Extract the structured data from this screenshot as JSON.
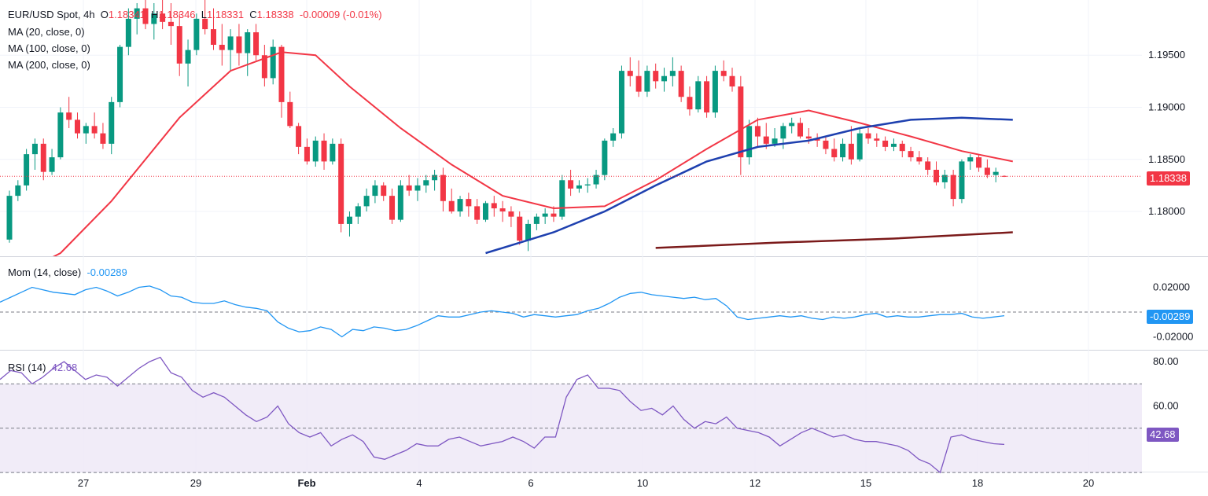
{
  "header": {
    "symbol": "EUR/USD Spot, 4h",
    "open_label": "O",
    "open_value": "1.18341",
    "high_label": "H",
    "high_value": "1.18346",
    "low_label": "L",
    "low_value": "1.18331",
    "close_label": "C",
    "close_value": "1.18338",
    "change": "-0.00009 (-0.01%)"
  },
  "indicators": {
    "ma20": "MA (20, close, 0)",
    "ma100": "MA (100, close, 0)",
    "ma200": "MA (200, close, 0)",
    "mom_label": "Mom (14, close)",
    "mom_value": "-0.00289",
    "rsi_label": "RSI (14)",
    "rsi_value": "42.68"
  },
  "tags": {
    "price": "1.18338",
    "mom": "-0.00289",
    "rsi": "42.68"
  },
  "colors": {
    "up": "#089981",
    "down": "#f23645",
    "ma20": "#f23645",
    "ma100": "#1e40af",
    "ma200": "#7b1a1a",
    "mom": "#2196f3",
    "rsi": "#7e57c2",
    "rsi_band": "#ede7f6"
  },
  "chart_data": [
    {
      "type": "candlestick",
      "title": "EUR/USD Spot, 4h",
      "x_ticks": [
        "27",
        "29",
        "Feb",
        "4",
        "6",
        "10",
        "12",
        "15",
        "18",
        "20"
      ],
      "y_ticks": [
        "1.19500",
        "1.19000",
        "1.18500",
        "1.18000"
      ],
      "ylim": [
        1.1757,
        1.2003
      ],
      "last_price": 1.18338,
      "candles": [
        [
          1.1773,
          1.182,
          1.177,
          1.1815
        ],
        [
          1.1815,
          1.183,
          1.181,
          1.1825
        ],
        [
          1.1825,
          1.186,
          1.182,
          1.1855
        ],
        [
          1.1855,
          1.187,
          1.184,
          1.1865
        ],
        [
          1.1865,
          1.187,
          1.183,
          1.1838
        ],
        [
          1.1838,
          1.186,
          1.1835,
          1.1852
        ],
        [
          1.1852,
          1.19,
          1.185,
          1.1895
        ],
        [
          1.1895,
          1.191,
          1.188,
          1.1888
        ],
        [
          1.1888,
          1.1895,
          1.187,
          1.1875
        ],
        [
          1.1875,
          1.1885,
          1.1865,
          1.1882
        ],
        [
          1.1882,
          1.1895,
          1.187,
          1.1875
        ],
        [
          1.1875,
          1.1885,
          1.186,
          1.1865
        ],
        [
          1.1865,
          1.191,
          1.1855,
          1.1905
        ],
        [
          1.1905,
          1.196,
          1.19,
          1.1958
        ],
        [
          1.1958,
          1.1995,
          1.195,
          1.1985
        ],
        [
          1.1985,
          1.2,
          1.197,
          1.1995
        ],
        [
          1.1995,
          1.2005,
          1.1975,
          1.198
        ],
        [
          1.198,
          1.2,
          1.1965,
          1.199
        ],
        [
          1.199,
          1.2003,
          1.1975,
          1.1982
        ],
        [
          1.1982,
          1.2,
          1.196,
          1.1978
        ],
        [
          1.1978,
          1.199,
          1.193,
          1.1942
        ],
        [
          1.1942,
          1.1965,
          1.192,
          1.1955
        ],
        [
          1.1955,
          1.199,
          1.195,
          1.1985
        ],
        [
          1.1985,
          1.2003,
          1.197,
          1.1975
        ],
        [
          1.1975,
          1.1995,
          1.1955,
          1.196
        ],
        [
          1.196,
          1.198,
          1.194,
          1.1955
        ],
        [
          1.1955,
          1.1975,
          1.1935,
          1.1968
        ],
        [
          1.1968,
          1.198,
          1.194,
          1.1952
        ],
        [
          1.1952,
          1.1975,
          1.193,
          1.1972
        ],
        [
          1.1972,
          1.198,
          1.1945,
          1.195
        ],
        [
          1.195,
          1.196,
          1.192,
          1.1928
        ],
        [
          1.1928,
          1.1965,
          1.1922,
          1.1958
        ],
        [
          1.1958,
          1.196,
          1.189,
          1.1905
        ],
        [
          1.1905,
          1.1915,
          1.188,
          1.1882
        ],
        [
          1.1882,
          1.1885,
          1.1855,
          1.1862
        ],
        [
          1.1862,
          1.187,
          1.1845,
          1.1848
        ],
        [
          1.1848,
          1.1872,
          1.1843,
          1.1868
        ],
        [
          1.1868,
          1.1875,
          1.184,
          1.1848
        ],
        [
          1.1848,
          1.187,
          1.1845,
          1.1865
        ],
        [
          1.1865,
          1.187,
          1.178,
          1.1788
        ],
        [
          1.1788,
          1.18,
          1.1776,
          1.1795
        ],
        [
          1.1795,
          1.1808,
          1.1788,
          1.1805
        ],
        [
          1.1805,
          1.1822,
          1.18,
          1.1815
        ],
        [
          1.1815,
          1.183,
          1.1808,
          1.1825
        ],
        [
          1.1825,
          1.1828,
          1.181,
          1.1815
        ],
        [
          1.1815,
          1.1822,
          1.1788,
          1.1792
        ],
        [
          1.1792,
          1.183,
          1.179,
          1.1825
        ],
        [
          1.1825,
          1.1835,
          1.1815,
          1.182
        ],
        [
          1.182,
          1.1832,
          1.181,
          1.1825
        ],
        [
          1.1825,
          1.1835,
          1.1818,
          1.183
        ],
        [
          1.183,
          1.184,
          1.182,
          1.1835
        ],
        [
          1.1835,
          1.1842,
          1.18,
          1.181
        ],
        [
          1.181,
          1.1822,
          1.1798,
          1.18
        ],
        [
          1.18,
          1.1815,
          1.1795,
          1.1812
        ],
        [
          1.1812,
          1.1818,
          1.1795,
          1.1805
        ],
        [
          1.1805,
          1.1812,
          1.1788,
          1.1792
        ],
        [
          1.1792,
          1.181,
          1.179,
          1.1808
        ],
        [
          1.1808,
          1.1815,
          1.1795,
          1.1803
        ],
        [
          1.1803,
          1.181,
          1.179,
          1.18
        ],
        [
          1.18,
          1.1805,
          1.1785,
          1.1795
        ],
        [
          1.1795,
          1.18,
          1.1768,
          1.1772
        ],
        [
          1.1772,
          1.1792,
          1.1762,
          1.1788
        ],
        [
          1.1788,
          1.1798,
          1.1782,
          1.1795
        ],
        [
          1.1795,
          1.1803,
          1.1788,
          1.1798
        ],
        [
          1.1798,
          1.1805,
          1.179,
          1.1795
        ],
        [
          1.1795,
          1.1835,
          1.1792,
          1.183
        ],
        [
          1.183,
          1.184,
          1.1815,
          1.1822
        ],
        [
          1.1822,
          1.183,
          1.1818,
          1.1825
        ],
        [
          1.1825,
          1.1832,
          1.1818,
          1.1826
        ],
        [
          1.1826,
          1.184,
          1.1822,
          1.1835
        ],
        [
          1.1835,
          1.187,
          1.183,
          1.1868
        ],
        [
          1.1868,
          1.188,
          1.1862,
          1.1875
        ],
        [
          1.1875,
          1.194,
          1.187,
          1.1935
        ],
        [
          1.1935,
          1.1948,
          1.192,
          1.193
        ],
        [
          1.193,
          1.1945,
          1.191,
          1.1915
        ],
        [
          1.1915,
          1.194,
          1.191,
          1.1935
        ],
        [
          1.1935,
          1.1942,
          1.1918,
          1.1925
        ],
        [
          1.1925,
          1.1938,
          1.1915,
          1.193
        ],
        [
          1.193,
          1.1948,
          1.192,
          1.1935
        ],
        [
          1.1935,
          1.194,
          1.1905,
          1.191
        ],
        [
          1.191,
          1.192,
          1.1892,
          1.1898
        ],
        [
          1.1898,
          1.193,
          1.1895,
          1.1925
        ],
        [
          1.1925,
          1.193,
          1.189,
          1.1895
        ],
        [
          1.1895,
          1.194,
          1.189,
          1.1935
        ],
        [
          1.1935,
          1.1945,
          1.1925,
          1.193
        ],
        [
          1.193,
          1.1938,
          1.1915,
          1.192
        ],
        [
          1.192,
          1.193,
          1.1835,
          1.1852
        ],
        [
          1.1852,
          1.1888,
          1.1845,
          1.1882
        ],
        [
          1.1882,
          1.189,
          1.1862,
          1.1872
        ],
        [
          1.1872,
          1.1885,
          1.186,
          1.1865
        ],
        [
          1.1865,
          1.188,
          1.1862,
          1.187
        ],
        [
          1.187,
          1.1885,
          1.186,
          1.1882
        ],
        [
          1.1882,
          1.189,
          1.1875,
          1.1885
        ],
        [
          1.1885,
          1.189,
          1.187,
          1.1872
        ],
        [
          1.1872,
          1.188,
          1.1865,
          1.187
        ],
        [
          1.187,
          1.1875,
          1.1862,
          1.1868
        ],
        [
          1.1868,
          1.1872,
          1.1855,
          1.186
        ],
        [
          1.186,
          1.187,
          1.1848,
          1.1852
        ],
        [
          1.1852,
          1.187,
          1.1848,
          1.1865
        ],
        [
          1.1865,
          1.1882,
          1.1845,
          1.185
        ],
        [
          1.185,
          1.188,
          1.1848,
          1.1875
        ],
        [
          1.1875,
          1.188,
          1.1865,
          1.187
        ],
        [
          1.187,
          1.1875,
          1.1862,
          1.1868
        ],
        [
          1.1868,
          1.1872,
          1.1858,
          1.1862
        ],
        [
          1.1862,
          1.187,
          1.1858,
          1.1865
        ],
        [
          1.1865,
          1.1868,
          1.1852,
          1.1858
        ],
        [
          1.1858,
          1.1862,
          1.1848,
          1.1852
        ],
        [
          1.1852,
          1.1858,
          1.1845,
          1.1848
        ],
        [
          1.1848,
          1.1852,
          1.1835,
          1.184
        ],
        [
          1.184,
          1.1848,
          1.1825,
          1.1828
        ],
        [
          1.1828,
          1.184,
          1.1822,
          1.1835
        ],
        [
          1.1835,
          1.184,
          1.1805,
          1.1812
        ],
        [
          1.1812,
          1.185,
          1.1808,
          1.1848
        ],
        [
          1.1848,
          1.1855,
          1.184,
          1.1852
        ],
        [
          1.1852,
          1.1855,
          1.1838,
          1.1842
        ],
        [
          1.1842,
          1.185,
          1.1832,
          1.1835
        ],
        [
          1.1835,
          1.1842,
          1.1828,
          1.1838
        ],
        [
          1.18341,
          1.18346,
          1.18331,
          1.18338
        ]
      ],
      "ma20": [
        [
          0,
          1.1735
        ],
        [
          6,
          1.176
        ],
        [
          12,
          1.181
        ],
        [
          20,
          1.189
        ],
        [
          26,
          1.1935
        ],
        [
          32,
          1.1953
        ],
        [
          36,
          1.195
        ],
        [
          40,
          1.192
        ],
        [
          46,
          1.188
        ],
        [
          52,
          1.1845
        ],
        [
          58,
          1.1815
        ],
        [
          64,
          1.1803
        ],
        [
          70,
          1.1805
        ],
        [
          76,
          1.183
        ],
        [
          82,
          1.186
        ],
        [
          88,
          1.1888
        ],
        [
          94,
          1.1897
        ],
        [
          100,
          1.1885
        ],
        [
          106,
          1.1872
        ],
        [
          112,
          1.1858
        ],
        [
          118,
          1.1848
        ]
      ],
      "ma100": [
        [
          56,
          1.176
        ],
        [
          64,
          1.178
        ],
        [
          70,
          1.18
        ],
        [
          76,
          1.1825
        ],
        [
          82,
          1.1848
        ],
        [
          88,
          1.1862
        ],
        [
          94,
          1.1868
        ],
        [
          100,
          1.188
        ],
        [
          106,
          1.1888
        ],
        [
          112,
          1.189
        ],
        [
          118,
          1.1888
        ]
      ],
      "ma200": [
        [
          76,
          1.1765
        ],
        [
          90,
          1.177
        ],
        [
          104,
          1.1774
        ],
        [
          118,
          1.178
        ]
      ],
      "series": []
    },
    {
      "type": "line",
      "title": "Mom (14, close)",
      "y_ticks": [
        "0.02000",
        "-0.02000"
      ],
      "ylim": [
        -0.026,
        0.026
      ],
      "zero_line": 0,
      "last_value": -0.00289,
      "values": [
        0.008,
        0.012,
        0.016,
        0.02,
        0.018,
        0.016,
        0.015,
        0.014,
        0.018,
        0.02,
        0.017,
        0.013,
        0.016,
        0.02,
        0.021,
        0.018,
        0.013,
        0.012,
        0.008,
        0.007,
        0.007,
        0.009,
        0.006,
        0.004,
        0.003,
        0.001,
        -0.008,
        -0.013,
        -0.016,
        -0.015,
        -0.012,
        -0.014,
        -0.02,
        -0.014,
        -0.015,
        -0.012,
        -0.013,
        -0.015,
        -0.014,
        -0.011,
        -0.007,
        -0.003,
        -0.004,
        -0.004,
        -0.002,
        0.0,
        0.001,
        0.0,
        -0.001,
        -0.004,
        -0.002,
        -0.003,
        -0.004,
        -0.003,
        -0.002,
        0.001,
        0.003,
        0.007,
        0.012,
        0.015,
        0.016,
        0.014,
        0.013,
        0.012,
        0.011,
        0.012,
        0.01,
        0.011,
        0.005,
        -0.004,
        -0.006,
        -0.005,
        -0.004,
        -0.003,
        -0.004,
        -0.003,
        -0.005,
        -0.006,
        -0.004,
        -0.005,
        -0.004,
        -0.002,
        -0.001,
        -0.004,
        -0.003,
        -0.004,
        -0.004,
        -0.003,
        -0.002,
        -0.002,
        -0.001,
        -0.004,
        -0.005,
        -0.004,
        -0.00289
      ]
    },
    {
      "type": "line",
      "title": "RSI (14)",
      "y_ticks": [
        "80.00",
        "60.00"
      ],
      "ylim": [
        29,
        85
      ],
      "band": [
        30,
        70
      ],
      "mid_line": 50,
      "last_value": 42.68,
      "values": [
        72,
        76,
        75,
        70,
        73,
        77,
        80,
        76,
        72,
        74,
        73,
        69,
        73,
        77,
        80,
        82,
        75,
        73,
        67,
        64,
        66,
        64,
        60,
        56,
        53,
        55,
        60,
        52,
        48,
        46,
        48,
        42,
        45,
        47,
        44,
        37,
        36,
        38,
        40,
        43,
        42,
        42,
        45,
        46,
        44,
        42,
        43,
        44,
        46,
        44,
        41,
        46,
        46,
        64,
        72,
        74,
        68,
        68,
        67,
        62,
        58,
        59,
        56,
        60,
        54,
        50,
        53,
        52,
        55,
        50,
        49,
        48,
        46,
        42,
        45,
        48,
        50,
        48,
        46,
        47,
        45,
        44,
        44,
        43,
        42,
        40,
        36,
        34,
        30,
        46,
        47,
        45,
        44,
        43,
        42.68
      ]
    }
  ]
}
